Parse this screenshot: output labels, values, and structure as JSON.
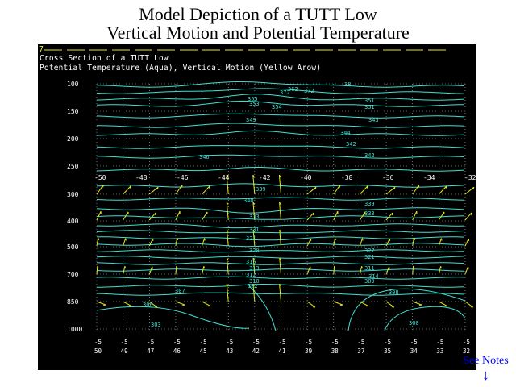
{
  "slide": {
    "title_line1": "Model Depiction of a TUTT Low",
    "title_line2": "Vertical Motion and Potential Temperature"
  },
  "panel": {
    "header_line1": "Cross Section of a TUTT Low",
    "header_line2": "Potential Temperature (Aqua), Vertical Motion (Yellow Arow)",
    "corner_mark": "7"
  },
  "colors": {
    "background": "#000000",
    "isentropes": "#40e0d0",
    "vertical_motion": "#e8e820",
    "grid": "#bfbfbf",
    "label_text": "#ffffff",
    "notes_link": "#0000ff"
  },
  "axes": {
    "pressure_levels": [
      "100",
      "150",
      "200",
      "250",
      "300",
      "400",
      "500",
      "700",
      "850",
      "1000"
    ],
    "longitudes_top": [
      "-50",
      "-48",
      "-46",
      "-44",
      "-42",
      "-40",
      "-38",
      "-36",
      "-34",
      "-32"
    ],
    "bottom_ticks": [
      {
        "a": "-5",
        "b": "50"
      },
      {
        "a": "-5",
        "b": "49"
      },
      {
        "a": "-5",
        "b": "47"
      },
      {
        "a": "-5",
        "b": "46"
      },
      {
        "a": "-5",
        "b": "45"
      },
      {
        "a": "-5",
        "b": "43"
      },
      {
        "a": "-5",
        "b": "42"
      },
      {
        "a": "-5",
        "b": "41"
      },
      {
        "a": "-5",
        "b": "39"
      },
      {
        "a": "-5",
        "b": "38"
      },
      {
        "a": "-5",
        "b": "37"
      },
      {
        "a": "-5",
        "b": "35"
      },
      {
        "a": "-5",
        "b": "34"
      },
      {
        "a": "-5",
        "b": "33"
      },
      {
        "a": "-5",
        "b": "32"
      }
    ]
  },
  "contour_labels": [
    "372",
    "362",
    "372",
    "38",
    "355",
    "353",
    "354",
    "351",
    "351",
    "349",
    "343",
    "344",
    "342",
    "346",
    "342",
    "339",
    "340",
    "339",
    "333",
    "333",
    "331",
    "321",
    "327",
    "321",
    "320",
    "315",
    "313",
    "312",
    "311",
    "310",
    "309",
    "308",
    "307",
    "306",
    "303",
    "302",
    "300",
    "314"
  ],
  "see_notes": {
    "label": "See Notes",
    "arrow": "↓"
  }
}
